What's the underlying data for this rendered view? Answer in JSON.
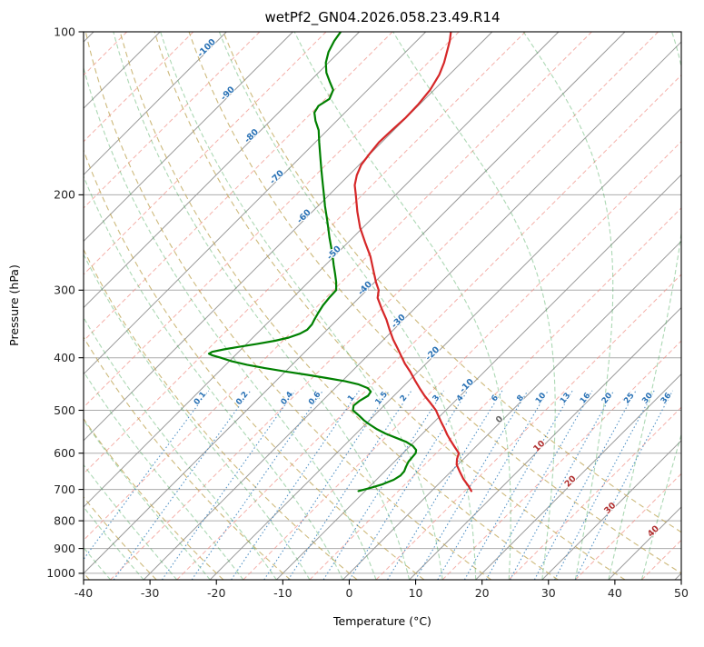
{
  "chart_data": {
    "type": "line",
    "variant": "skew-t-log-p-sounding",
    "title": "wetPf2_GN04.2026.058.23.49.R14",
    "xlabel": "Temperature (°C)",
    "ylabel": "Pressure (hPa)",
    "xlim": [
      -40,
      50
    ],
    "plim": [
      100,
      1028
    ],
    "skew_deg": 45,
    "x_ticks": [
      -40,
      -30,
      -20,
      -10,
      0,
      10,
      20,
      30,
      40,
      50
    ],
    "y_ticks": [
      100,
      200,
      300,
      400,
      500,
      600,
      700,
      800,
      900,
      1000
    ],
    "grid": true,
    "series": [
      {
        "name": "temperature",
        "color": "#d62728",
        "style": "solid",
        "points_p_t": [
          [
            705,
            6.0
          ],
          [
            690,
            4.8
          ],
          [
            670,
            3.0
          ],
          [
            650,
            1.4
          ],
          [
            630,
            -0.2
          ],
          [
            615,
            -1.0
          ],
          [
            600,
            -1.6
          ],
          [
            585,
            -3.1
          ],
          [
            570,
            -4.6
          ],
          [
            555,
            -6.1
          ],
          [
            540,
            -7.5
          ],
          [
            525,
            -9.0
          ],
          [
            510,
            -10.5
          ],
          [
            500,
            -11.5
          ],
          [
            485,
            -13.4
          ],
          [
            470,
            -15.4
          ],
          [
            455,
            -17.3
          ],
          [
            440,
            -19.2
          ],
          [
            425,
            -21.1
          ],
          [
            410,
            -23.2
          ],
          [
            400,
            -24.5
          ],
          [
            385,
            -26.5
          ],
          [
            370,
            -28.6
          ],
          [
            355,
            -30.6
          ],
          [
            340,
            -32.6
          ],
          [
            325,
            -34.9
          ],
          [
            310,
            -37.2
          ],
          [
            300,
            -38.2
          ],
          [
            290,
            -39.8
          ],
          [
            275,
            -42.1
          ],
          [
            260,
            -44.5
          ],
          [
            245,
            -47.4
          ],
          [
            230,
            -50.4
          ],
          [
            215,
            -53.2
          ],
          [
            200,
            -56.0
          ],
          [
            192,
            -57.6
          ],
          [
            184,
            -58.8
          ],
          [
            176,
            -59.7
          ],
          [
            168,
            -60.1
          ],
          [
            160,
            -60.4
          ],
          [
            152,
            -60.3
          ],
          [
            144,
            -60.1
          ],
          [
            136,
            -60.2
          ],
          [
            128,
            -60.6
          ],
          [
            120,
            -61.5
          ],
          [
            114,
            -62.6
          ],
          [
            108,
            -64.0
          ],
          [
            104,
            -65.0
          ],
          [
            100,
            -66.2
          ]
        ]
      },
      {
        "name": "dewpoint",
        "color": "#008000",
        "style": "solid",
        "points_p_t": [
          [
            705,
            -11.0
          ],
          [
            695,
            -9.6
          ],
          [
            685,
            -8.4
          ],
          [
            672,
            -7.4
          ],
          [
            660,
            -7.0
          ],
          [
            648,
            -7.1
          ],
          [
            636,
            -7.5
          ],
          [
            622,
            -7.9
          ],
          [
            610,
            -8.0
          ],
          [
            600,
            -8.1
          ],
          [
            592,
            -8.5
          ],
          [
            582,
            -9.6
          ],
          [
            572,
            -11.2
          ],
          [
            562,
            -13.4
          ],
          [
            552,
            -15.6
          ],
          [
            542,
            -17.5
          ],
          [
            532,
            -19.2
          ],
          [
            522,
            -20.8
          ],
          [
            512,
            -22.2
          ],
          [
            500,
            -24.0
          ],
          [
            490,
            -24.6
          ],
          [
            480,
            -24.4
          ],
          [
            470,
            -23.9
          ],
          [
            462,
            -24.1
          ],
          [
            455,
            -25.1
          ],
          [
            448,
            -27.0
          ],
          [
            442,
            -29.5
          ],
          [
            436,
            -32.8
          ],
          [
            430,
            -36.2
          ],
          [
            424,
            -40.0
          ],
          [
            418,
            -43.6
          ],
          [
            412,
            -46.8
          ],
          [
            406,
            -49.6
          ],
          [
            400,
            -51.8
          ],
          [
            396,
            -53.4
          ],
          [
            393,
            -54.2
          ],
          [
            390,
            -54.0
          ],
          [
            386,
            -52.6
          ],
          [
            382,
            -50.8
          ],
          [
            377,
            -48.4
          ],
          [
            372,
            -46.2
          ],
          [
            367,
            -44.6
          ],
          [
            361,
            -43.5
          ],
          [
            355,
            -43.0
          ],
          [
            347,
            -43.1
          ],
          [
            339,
            -43.5
          ],
          [
            330,
            -43.9
          ],
          [
            320,
            -44.3
          ],
          [
            310,
            -44.5
          ],
          [
            300,
            -44.6
          ],
          [
            290,
            -45.8
          ],
          [
            280,
            -47.2
          ],
          [
            270,
            -48.7
          ],
          [
            260,
            -50.2
          ],
          [
            250,
            -51.8
          ],
          [
            240,
            -53.5
          ],
          [
            230,
            -55.2
          ],
          [
            220,
            -57.0
          ],
          [
            210,
            -58.9
          ],
          [
            200,
            -60.8
          ],
          [
            190,
            -62.8
          ],
          [
            180,
            -64.9
          ],
          [
            170,
            -67.1
          ],
          [
            160,
            -69.4
          ],
          [
            152,
            -71.3
          ],
          [
            146,
            -73.2
          ],
          [
            141,
            -74.6
          ],
          [
            137,
            -75.0
          ],
          [
            133,
            -74.4
          ],
          [
            128,
            -75.2
          ],
          [
            124,
            -76.8
          ],
          [
            119,
            -78.8
          ],
          [
            114,
            -80.4
          ],
          [
            109,
            -81.6
          ],
          [
            104,
            -82.4
          ],
          [
            100,
            -82.8
          ]
        ]
      }
    ],
    "background": {
      "pressure_gridlines": {
        "color": "#ababab",
        "values": [
          100,
          200,
          300,
          400,
          500,
          600,
          700,
          800,
          900,
          1000
        ]
      },
      "isotherms": {
        "color": "#8f8f8f",
        "step": 10,
        "range": [
          -160,
          50
        ],
        "style": "solid"
      },
      "isotherms_minor": {
        "color": "#f08f86",
        "step": 10,
        "offset": 5,
        "range": [
          -155,
          45
        ],
        "style": "dashed"
      },
      "dry_adiabats": {
        "color": "#bca14f",
        "theta_start": -40,
        "theta_end": 60,
        "step": 10,
        "style": "dashed"
      },
      "moist_adiabats": {
        "color": "#2f9e44",
        "t0_start": -40,
        "t0_end": 45,
        "step": 5,
        "style": "dashed"
      },
      "mixing_ratio_lines": {
        "color": "#3f86c0",
        "style": "dotted",
        "top_p": 460,
        "values": [
          0.1,
          0.2,
          0.4,
          0.6,
          1,
          1.5,
          2,
          3,
          4,
          6,
          8,
          10,
          13,
          16,
          20,
          25,
          30,
          36
        ]
      }
    },
    "isotherm_labels": {
      "color_negative": "#2a72b5",
      "color_zero": "#666666",
      "color_positive": "#b03030",
      "items": [
        {
          "value": -100,
          "p": 108
        },
        {
          "value": -90,
          "p": 131
        },
        {
          "value": -80,
          "p": 157
        },
        {
          "value": -70,
          "p": 187
        },
        {
          "value": -60,
          "p": 221
        },
        {
          "value": -50,
          "p": 258
        },
        {
          "value": -40,
          "p": 300
        },
        {
          "value": -30,
          "p": 345
        },
        {
          "value": -20,
          "p": 396
        },
        {
          "value": -10,
          "p": 454
        },
        {
          "value": 0,
          "p": 524
        },
        {
          "value": 10,
          "p": 587
        },
        {
          "value": 20,
          "p": 682
        },
        {
          "value": 30,
          "p": 764
        },
        {
          "value": 40,
          "p": 843
        }
      ]
    },
    "mixing_ratio_labels": {
      "p": 478,
      "color": "#2a72b5",
      "values": [
        "0.1",
        "0.2",
        "0.4",
        "0.6",
        "1",
        "1.5",
        "2",
        "3",
        "4",
        "6",
        "8",
        "10",
        "13",
        "16",
        "20",
        "25",
        "30",
        "36"
      ]
    }
  }
}
